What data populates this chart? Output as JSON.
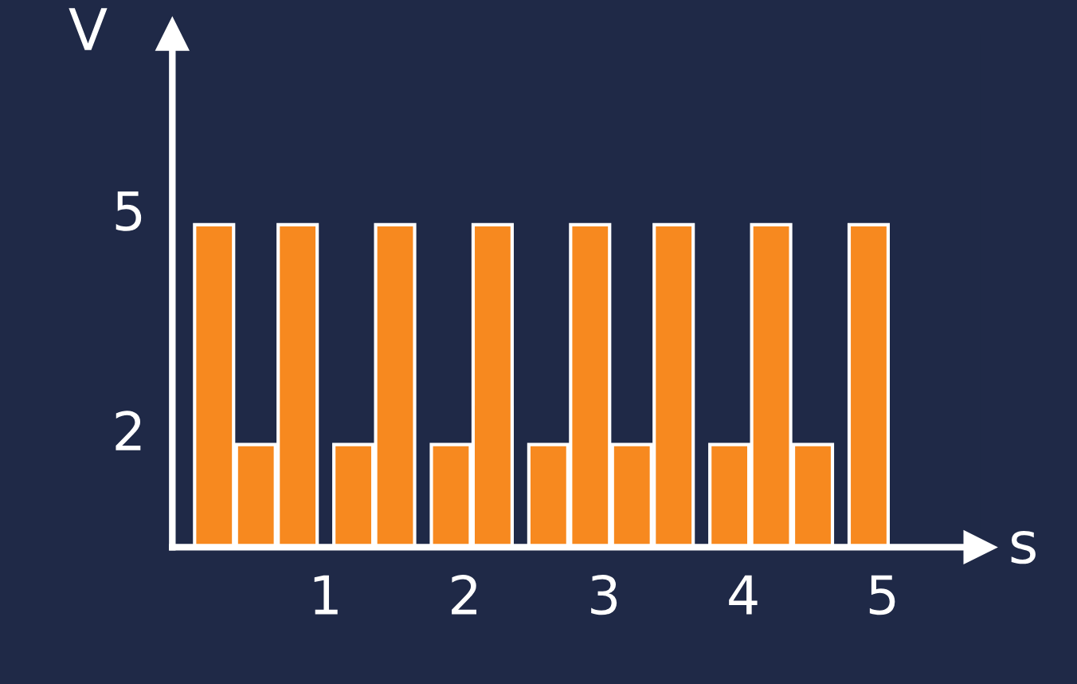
{
  "chart_data": {
    "type": "bar",
    "xlabel": "s",
    "ylabel": "V",
    "x": [
      0.2,
      0.5,
      0.8,
      1.2,
      1.5,
      1.9,
      2.2,
      2.6,
      2.9,
      3.2,
      3.5,
      3.9,
      4.2,
      4.5,
      4.9
    ],
    "values": [
      4.8,
      1.8,
      4.8,
      1.8,
      4.8,
      1.8,
      4.8,
      1.8,
      4.8,
      1.8,
      4.8,
      1.8,
      4.8,
      1.8,
      4.8
    ],
    "color": "#f7891f",
    "xlim": [
      -0.1,
      5.7
    ],
    "ylim": [
      0.4,
      7.4
    ],
    "xticks": [
      1,
      2,
      3,
      4,
      5
    ],
    "yticks": [
      2,
      5
    ],
    "grid": false,
    "legend": false
  }
}
